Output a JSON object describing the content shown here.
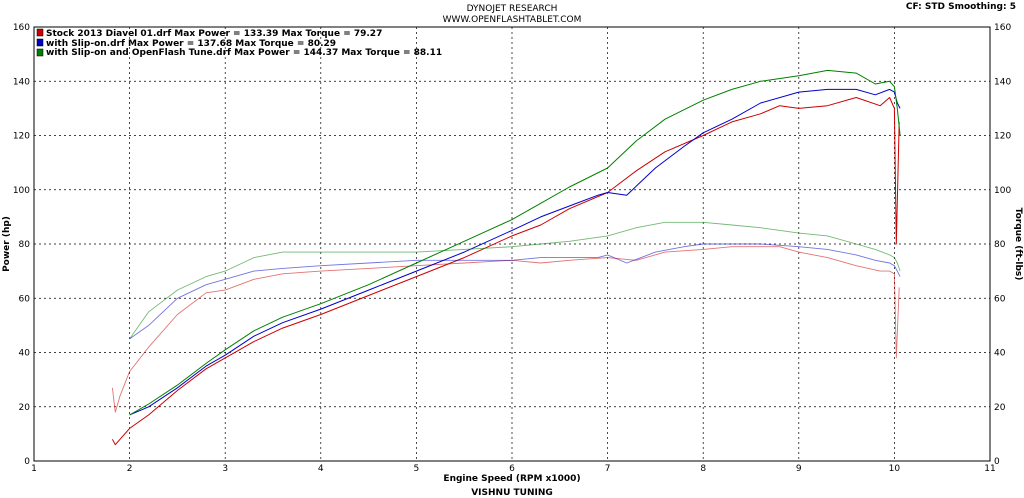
{
  "header": {
    "title": "DYNOJET RESEARCH",
    "website": "WWW.OPENFLASHTABLET.COM",
    "settings": "CF: STD  Smoothing: 5",
    "footer": "VISHNU TUNING"
  },
  "chart_data": {
    "type": "line",
    "xlabel": "Engine Speed (RPM x1000)",
    "ylabel": "Power (hp)",
    "y2label": "Torque (ft-lbs)",
    "xlim": [
      1,
      11
    ],
    "ylim": [
      0,
      160
    ],
    "y2lim": [
      0,
      160
    ],
    "xticks": [
      "1",
      "2",
      "3",
      "4",
      "5",
      "6",
      "7",
      "8",
      "9",
      "10",
      "11"
    ],
    "yticks": [
      "0",
      "20",
      "40",
      "60",
      "80",
      "100",
      "120",
      "140",
      "160"
    ],
    "grid": true,
    "legend_position": "top-left",
    "series": [
      {
        "name": "Stock 2013 Diavel 01.drf",
        "legend_text": "Stock 2013 Diavel 01.drf Max Power = 133.39     Max Torque = 79.27",
        "color": "#cc0000",
        "power": {
          "x": [
            1.82,
            1.85,
            1.9,
            2.0,
            2.2,
            2.5,
            2.8,
            3.0,
            3.3,
            3.6,
            4.0,
            4.5,
            5.0,
            5.5,
            6.0,
            6.3,
            6.6,
            7.0,
            7.3,
            7.6,
            8.0,
            8.3,
            8.6,
            8.8,
            9.0,
            9.3,
            9.6,
            9.85,
            9.95,
            10.0,
            10.02,
            10.05
          ],
          "y": [
            8,
            6,
            8,
            12,
            17,
            26,
            34,
            38,
            44,
            49,
            54,
            61,
            68,
            75,
            83,
            87,
            93,
            99,
            107,
            114,
            120,
            125,
            128,
            131,
            130,
            131,
            134,
            131,
            134,
            130,
            80,
            125
          ]
        },
        "torque": {
          "x": [
            1.82,
            1.85,
            1.9,
            2.0,
            2.2,
            2.5,
            2.8,
            3.0,
            3.3,
            3.6,
            4.0,
            4.5,
            5.0,
            5.5,
            6.0,
            6.3,
            6.6,
            7.0,
            7.3,
            7.6,
            8.0,
            8.3,
            8.6,
            8.8,
            9.0,
            9.3,
            9.6,
            9.85,
            9.95,
            10.0,
            10.02,
            10.05
          ],
          "y": [
            27,
            18,
            24,
            33,
            42,
            54,
            62,
            63,
            67,
            69,
            70,
            71,
            72,
            73,
            74,
            73,
            74,
            75,
            74,
            77,
            78,
            79,
            79,
            79,
            77,
            75,
            72,
            70,
            70,
            69,
            38,
            64
          ]
        }
      },
      {
        "name": "with Slip-on.drf",
        "legend_text": "with Slip-on.drf Max Power = 137.68     Max Torque = 80.29",
        "color": "#0000cc",
        "power": {
          "x": [
            2.0,
            2.2,
            2.5,
            2.8,
            3.0,
            3.3,
            3.6,
            4.0,
            4.5,
            5.0,
            5.5,
            6.0,
            6.3,
            6.6,
            6.9,
            7.0,
            7.2,
            7.5,
            7.8,
            8.0,
            8.3,
            8.6,
            9.0,
            9.3,
            9.6,
            9.8,
            9.95,
            10.0,
            10.03,
            10.06
          ],
          "y": [
            17,
            20,
            27,
            35,
            39,
            46,
            51,
            56,
            63,
            70,
            77,
            85,
            90,
            94,
            98,
            99,
            98,
            108,
            116,
            121,
            126,
            132,
            136,
            137,
            137,
            135,
            137,
            136,
            132,
            130
          ]
        },
        "torque": {
          "x": [
            2.0,
            2.2,
            2.5,
            2.8,
            3.0,
            3.3,
            3.6,
            4.0,
            4.5,
            5.0,
            5.5,
            6.0,
            6.3,
            6.6,
            6.9,
            7.0,
            7.2,
            7.5,
            7.8,
            8.0,
            8.3,
            8.6,
            9.0,
            9.3,
            9.6,
            9.8,
            9.95,
            10.0,
            10.03,
            10.06
          ],
          "y": [
            45,
            50,
            60,
            65,
            67,
            70,
            71,
            72,
            73,
            74,
            74,
            74,
            75,
            75,
            75,
            76,
            73,
            77,
            79,
            80,
            80,
            80,
            79,
            78,
            76,
            74,
            73,
            72,
            70,
            68
          ]
        }
      },
      {
        "name": "with Slip-on and OpenFlash Tune.drf",
        "legend_text": "with Slip-on and OpenFlash Tune.drf Max Power = 144.37     Max Torque = 88.11",
        "color": "#008000",
        "power": {
          "x": [
            2.0,
            2.2,
            2.5,
            2.8,
            3.0,
            3.3,
            3.6,
            4.0,
            4.5,
            5.0,
            5.5,
            6.0,
            6.3,
            6.6,
            7.0,
            7.3,
            7.6,
            8.0,
            8.3,
            8.6,
            9.0,
            9.3,
            9.6,
            9.8,
            9.95,
            10.0,
            10.03,
            10.06
          ],
          "y": [
            17,
            21,
            28,
            36,
            41,
            48,
            53,
            58,
            65,
            73,
            81,
            89,
            95,
            101,
            108,
            118,
            126,
            133,
            137,
            140,
            142,
            144,
            143,
            139,
            140,
            138,
            130,
            120
          ]
        },
        "torque": {
          "x": [
            2.0,
            2.2,
            2.5,
            2.8,
            3.0,
            3.3,
            3.6,
            4.0,
            4.5,
            5.0,
            5.5,
            6.0,
            6.3,
            6.6,
            7.0,
            7.3,
            7.6,
            8.0,
            8.3,
            8.6,
            9.0,
            9.3,
            9.6,
            9.8,
            9.95,
            10.0,
            10.03,
            10.06
          ],
          "y": [
            45,
            55,
            63,
            68,
            70,
            75,
            77,
            77,
            77,
            77,
            78,
            79,
            80,
            81,
            83,
            86,
            88,
            88,
            87,
            86,
            84,
            83,
            80,
            78,
            76,
            75,
            73,
            70
          ]
        }
      }
    ]
  }
}
